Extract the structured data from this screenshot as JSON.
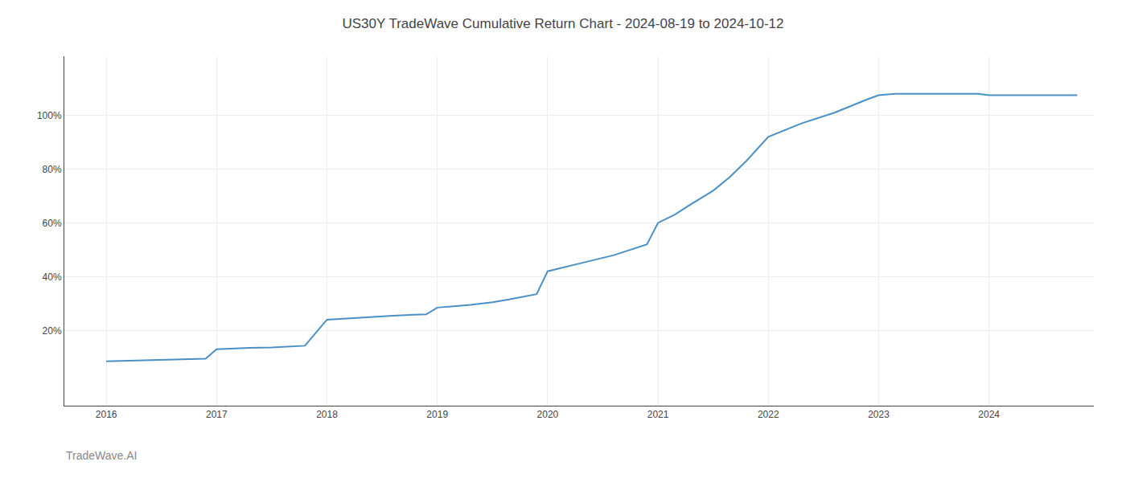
{
  "chart_data": {
    "type": "line",
    "title": "US30Y TradeWave Cumulative Return Chart - 2024-08-19 to 2024-10-12",
    "annotations": [
      "TradeWave.AI"
    ],
    "x": [
      2016.0,
      2016.15,
      2016.3,
      2016.6,
      2016.9,
      2017.0,
      2017.15,
      2017.3,
      2017.5,
      2017.65,
      2017.8,
      2018.0,
      2018.3,
      2018.6,
      2018.9,
      2019.0,
      2019.15,
      2019.3,
      2019.5,
      2019.65,
      2019.9,
      2020.0,
      2020.3,
      2020.6,
      2020.9,
      2021.0,
      2021.15,
      2021.3,
      2021.5,
      2021.65,
      2021.8,
      2022.0,
      2022.3,
      2022.6,
      2022.9,
      2023.0,
      2023.15,
      2023.3,
      2023.6,
      2023.9,
      2024.0,
      2024.8
    ],
    "values": [
      8.5,
      8.7,
      8.9,
      9.2,
      9.5,
      13.0,
      13.3,
      13.5,
      13.7,
      14.0,
      14.3,
      24.0,
      24.8,
      25.5,
      26.0,
      28.5,
      29.0,
      29.5,
      30.5,
      31.5,
      33.5,
      42.0,
      45.0,
      48.0,
      52.0,
      60.0,
      63.0,
      67.0,
      72.0,
      77.0,
      83.0,
      92.0,
      97.0,
      101.0,
      106.0,
      107.5,
      108.0,
      108.0,
      108.0,
      108.0,
      107.5,
      107.5
    ],
    "color": "#4a90c4",
    "xlim": [
      2015.62,
      2024.95
    ],
    "ylim": [
      -8,
      122
    ],
    "xticks": [
      2016,
      2017,
      2018,
      2019,
      2020,
      2021,
      2022,
      2023,
      2024
    ],
    "yticks": [
      {
        "value": 20,
        "label": "20%"
      },
      {
        "value": 40,
        "label": "40%"
      },
      {
        "value": 60,
        "label": "60%"
      },
      {
        "value": 80,
        "label": "80%"
      },
      {
        "value": 100,
        "label": "100%"
      }
    ],
    "grid": true
  }
}
